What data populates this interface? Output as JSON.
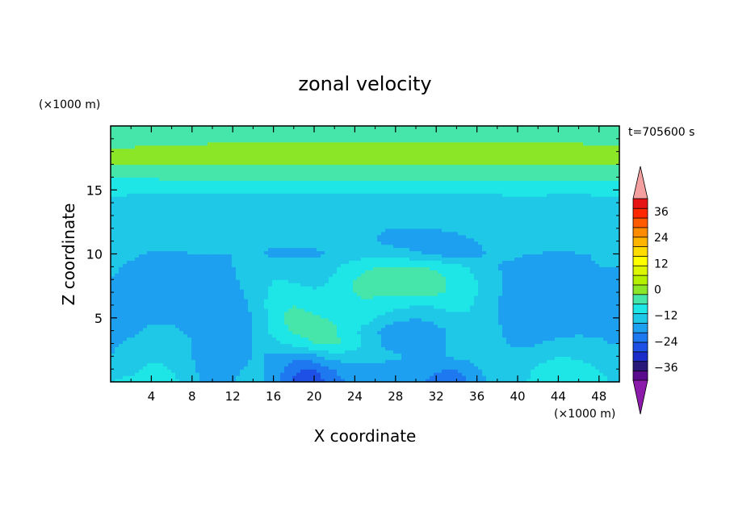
{
  "chart_data": {
    "type": "heatmap",
    "title": "zonal velocity",
    "xlabel": "X coordinate",
    "ylabel": "Z coordinate",
    "x_units": "(×1000 m)",
    "y_units": "(×1000 m)",
    "time_label": "t=705600 s",
    "xlim": [
      0,
      50
    ],
    "ylim": [
      0,
      20
    ],
    "x_ticks": [
      4,
      8,
      12,
      16,
      20,
      24,
      28,
      32,
      36,
      40,
      44,
      48
    ],
    "y_ticks": [
      5,
      10,
      15
    ],
    "colorbar": {
      "min": -42,
      "max": 42,
      "step": 6,
      "labels": [
        36,
        24,
        12,
        0,
        -12,
        -24,
        -36
      ],
      "extend": "both",
      "colors": [
        "#5a0a8c",
        "#28187a",
        "#1c2cc8",
        "#1e50e6",
        "#1e78f0",
        "#1ea0f0",
        "#1ec8e6",
        "#1ee6e6",
        "#46e6aa",
        "#8ce628",
        "#b4f000",
        "#dcf500",
        "#ffff00",
        "#ffdc00",
        "#ffb400",
        "#ff8c00",
        "#ff5a00",
        "#ff2800",
        "#e61414"
      ],
      "over_color": "#f4a0a0",
      "under_color": "#8c1aaa"
    },
    "x": [
      0,
      1,
      2,
      3,
      4,
      5,
      6,
      7,
      8,
      9,
      10,
      11,
      12,
      13,
      14,
      15,
      16,
      17,
      18,
      19,
      20,
      21,
      22,
      23,
      24,
      25,
      26,
      27,
      28,
      29,
      30,
      31,
      32,
      33,
      34,
      35,
      36,
      37,
      38,
      39,
      40,
      41,
      42,
      43,
      44,
      45,
      46,
      47,
      48,
      49,
      50
    ],
    "z": [
      0,
      1,
      2,
      3,
      4,
      5,
      6,
      7,
      8,
      9,
      10,
      11,
      12,
      13,
      14,
      15,
      16,
      17,
      18,
      19,
      20
    ],
    "values": [
      [
        0,
        1,
        1,
        2,
        2,
        2,
        1,
        0,
        -3,
        -6,
        -8,
        -8,
        -6,
        -4,
        -3,
        -5,
        -9,
        -14,
        -20,
        -24,
        -22,
        -18,
        -14,
        -12,
        -12,
        -11,
        -10,
        -11,
        -12,
        -12,
        -12,
        -12,
        -14,
        -16,
        -16,
        -12,
        -8,
        -6,
        -5,
        -4,
        -2,
        0,
        2,
        3,
        4,
        4,
        3,
        2,
        1,
        0,
        0
      ],
      [
        -4,
        -2,
        -1,
        0,
        1,
        1,
        0,
        -2,
        -5,
        -8,
        -9,
        -9,
        -8,
        -6,
        -5,
        -6,
        -9,
        -12,
        -16,
        -19,
        -18,
        -15,
        -12,
        -10,
        -10,
        -9,
        -8,
        -9,
        -10,
        -10,
        -10,
        -10,
        -11,
        -12,
        -12,
        -10,
        -7,
        -5,
        -5,
        -4,
        -3,
        -1,
        1,
        2,
        3,
        3,
        2,
        1,
        0,
        -1,
        -1
      ],
      [
        -6,
        -4,
        -3,
        -2,
        -1,
        -1,
        -2,
        -3,
        -6,
        -8,
        -9,
        -9,
        -8,
        -7,
        -6,
        -6,
        -8,
        -9,
        -10,
        -10,
        -8,
        -5,
        -3,
        -3,
        -3,
        -3,
        -3,
        -4,
        -5,
        -6,
        -6,
        -6,
        -6,
        -6,
        -5,
        -4,
        -3,
        -3,
        -4,
        -4,
        -4,
        -3,
        -2,
        -1,
        0,
        0,
        -1,
        -1,
        -2,
        -3,
        -3
      ],
      [
        -7,
        -6,
        -5,
        -4,
        -3,
        -3,
        -3,
        -4,
        -6,
        -7,
        -8,
        -8,
        -8,
        -7,
        -6,
        -3,
        -2,
        0,
        2,
        4,
        6,
        7,
        7,
        5,
        2,
        -1,
        -4,
        -7,
        -9,
        -10,
        -10,
        -9,
        -8,
        -6,
        -4,
        -3,
        -2,
        -3,
        -5,
        -6,
        -7,
        -7,
        -6,
        -5,
        -4,
        -4,
        -4,
        -5,
        -5,
        -6,
        -6
      ],
      [
        -8,
        -7,
        -7,
        -6,
        -5,
        -5,
        -5,
        -6,
        -7,
        -8,
        -9,
        -9,
        -9,
        -8,
        -6,
        -2,
        2,
        5,
        7,
        8,
        8,
        8,
        7,
        4,
        1,
        -2,
        -5,
        -8,
        -10,
        -11,
        -11,
        -10,
        -8,
        -6,
        -4,
        -2,
        -2,
        -3,
        -5,
        -7,
        -9,
        -10,
        -10,
        -9,
        -8,
        -8,
        -7,
        -7,
        -7,
        -7,
        -7
      ],
      [
        -8,
        -7,
        -7,
        -7,
        -7,
        -7,
        -7,
        -8,
        -9,
        -10,
        -10,
        -10,
        -9,
        -8,
        -6,
        -2,
        3,
        6,
        8,
        8,
        7,
        6,
        5,
        4,
        3,
        2,
        0,
        -2,
        -4,
        -5,
        -6,
        -5,
        -4,
        -3,
        -2,
        -1,
        -2,
        -4,
        -6,
        -8,
        -10,
        -11,
        -12,
        -11,
        -10,
        -10,
        -9,
        -8,
        -8,
        -7,
        -7
      ],
      [
        -8,
        -8,
        -8,
        -8,
        -9,
        -9,
        -10,
        -10,
        -11,
        -11,
        -11,
        -10,
        -9,
        -7,
        -5,
        -1,
        3,
        5,
        6,
        5,
        4,
        3,
        3,
        4,
        5,
        5,
        4,
        3,
        2,
        1,
        0,
        0,
        1,
        2,
        2,
        1,
        -1,
        -3,
        -6,
        -8,
        -10,
        -12,
        -12,
        -12,
        -11,
        -10,
        -10,
        -9,
        -8,
        -8,
        -8
      ],
      [
        -7,
        -8,
        -8,
        -9,
        -10,
        -11,
        -11,
        -12,
        -12,
        -12,
        -11,
        -10,
        -8,
        -6,
        -4,
        -1,
        2,
        3,
        3,
        2,
        1,
        1,
        2,
        4,
        6,
        7,
        7,
        7,
        7,
        8,
        8,
        8,
        7,
        6,
        4,
        2,
        0,
        -2,
        -5,
        -8,
        -10,
        -11,
        -12,
        -12,
        -11,
        -11,
        -10,
        -9,
        -8,
        -8,
        -8
      ],
      [
        -6,
        -7,
        -8,
        -9,
        -10,
        -11,
        -12,
        -12,
        -12,
        -11,
        -10,
        -9,
        -7,
        -5,
        -3,
        -2,
        0,
        0,
        -1,
        -2,
        -2,
        -1,
        1,
        3,
        6,
        8,
        9,
        10,
        10,
        10,
        10,
        9,
        8,
        6,
        4,
        2,
        0,
        -2,
        -4,
        -7,
        -9,
        -10,
        -10,
        -10,
        -10,
        -10,
        -9,
        -8,
        -7,
        -7,
        -7
      ],
      [
        -5,
        -6,
        -7,
        -8,
        -9,
        -10,
        -10,
        -10,
        -10,
        -9,
        -8,
        -7,
        -6,
        -5,
        -4,
        -4,
        -4,
        -4,
        -4,
        -4,
        -4,
        -3,
        -1,
        1,
        3,
        5,
        6,
        7,
        7,
        7,
        7,
        6,
        5,
        4,
        2,
        0,
        -2,
        -4,
        -6,
        -7,
        -8,
        -9,
        -9,
        -9,
        -9,
        -8,
        -8,
        -7,
        -6,
        -6,
        -6
      ],
      [
        -4,
        -5,
        -5,
        -6,
        -7,
        -7,
        -7,
        -7,
        -6,
        -6,
        -6,
        -6,
        -6,
        -6,
        -6,
        -6,
        -7,
        -7,
        -7,
        -7,
        -7,
        -6,
        -5,
        -4,
        -3,
        -2,
        -2,
        -2,
        -3,
        -4,
        -5,
        -6,
        -7,
        -8,
        -8,
        -8,
        -7,
        -6,
        -5,
        -5,
        -5,
        -6,
        -6,
        -7,
        -7,
        -7,
        -6,
        -6,
        -5,
        -5,
        -5
      ],
      [
        -3,
        -3,
        -3,
        -3,
        -3,
        -3,
        -3,
        -3,
        -3,
        -3,
        -4,
        -4,
        -4,
        -5,
        -5,
        -5,
        -5,
        -5,
        -5,
        -5,
        -5,
        -5,
        -4,
        -4,
        -4,
        -5,
        -6,
        -7,
        -8,
        -9,
        -9,
        -9,
        -9,
        -9,
        -8,
        -7,
        -6,
        -5,
        -4,
        -3,
        -3,
        -3,
        -3,
        -4,
        -4,
        -4,
        -4,
        -3,
        -3,
        -3,
        -3
      ],
      [
        -2,
        -2,
        -2,
        -2,
        -2,
        -2,
        -2,
        -3,
        -3,
        -3,
        -3,
        -3,
        -3,
        -3,
        -3,
        -3,
        -3,
        -3,
        -3,
        -3,
        -3,
        -3,
        -3,
        -4,
        -4,
        -5,
        -5,
        -6,
        -6,
        -6,
        -6,
        -6,
        -6,
        -5,
        -5,
        -4,
        -3,
        -2,
        -2,
        -1,
        -1,
        -1,
        -1,
        -2,
        -2,
        -2,
        -2,
        -2,
        -1,
        -1,
        -1
      ],
      [
        -2,
        -2,
        -3,
        -3,
        -4,
        -4,
        -4,
        -4,
        -4,
        -4,
        -4,
        -4,
        -4,
        -4,
        -4,
        -4,
        -4,
        -5,
        -5,
        -5,
        -5,
        -5,
        -5,
        -5,
        -5,
        -5,
        -4,
        -4,
        -4,
        -4,
        -4,
        -3,
        -3,
        -3,
        -3,
        -2,
        -2,
        -2,
        -2,
        -1,
        -1,
        -1,
        -1,
        -1,
        -1,
        -1,
        -1,
        -1,
        -1,
        -1,
        -1
      ],
      [
        -1,
        -1,
        -2,
        -2,
        -2,
        -2,
        -2,
        -2,
        -2,
        -3,
        -3,
        -3,
        -3,
        -3,
        -2,
        -2,
        -2,
        -2,
        -2,
        -2,
        -2,
        -2,
        -2,
        -2,
        -2,
        -3,
        -3,
        -3,
        -3,
        -3,
        -3,
        -3,
        -3,
        -3,
        -3,
        -2,
        -2,
        -2,
        -2,
        -1,
        -1,
        -1,
        -1,
        -2,
        -2,
        -2,
        -2,
        -2,
        -1,
        -1,
        -1
      ],
      [
        1,
        1,
        1,
        1,
        1,
        1,
        1,
        1,
        1,
        1,
        1,
        1,
        1,
        1,
        1,
        1,
        1,
        1,
        1,
        1,
        1,
        1,
        1,
        1,
        1,
        1,
        1,
        1,
        1,
        1,
        1,
        1,
        1,
        1,
        1,
        1,
        1,
        1,
        1,
        1,
        1,
        1,
        1,
        1,
        1,
        1,
        1,
        1,
        1,
        1,
        1
      ],
      [
        6,
        6,
        6,
        6,
        6,
        7,
        7,
        7,
        7,
        7,
        7,
        7,
        7,
        7,
        7,
        7,
        7,
        7,
        7,
        7,
        7,
        7,
        7,
        7,
        7,
        7,
        7,
        7,
        7,
        7,
        7,
        7,
        7,
        7,
        7,
        7,
        7,
        7,
        7,
        7,
        7,
        7,
        7,
        7,
        7,
        7,
        7,
        7,
        7,
        7,
        7
      ],
      [
        12,
        12,
        12,
        12,
        12,
        12,
        12,
        12,
        12,
        12,
        12,
        12,
        12,
        12,
        12,
        12,
        12,
        12,
        12,
        12,
        12,
        12,
        12,
        12,
        12,
        12,
        12,
        12,
        12,
        12,
        12,
        12,
        12,
        12,
        12,
        12,
        12,
        12,
        12,
        12,
        12,
        12,
        12,
        12,
        12,
        12,
        12,
        12,
        12,
        12,
        12
      ],
      [
        13,
        13,
        13,
        14,
        14,
        14,
        14,
        14,
        14,
        14,
        15,
        15,
        15,
        15,
        15,
        15,
        15,
        15,
        15,
        15,
        15,
        15,
        15,
        15,
        15,
        16,
        16,
        16,
        16,
        16,
        16,
        16,
        16,
        16,
        16,
        16,
        16,
        16,
        16,
        16,
        15,
        15,
        15,
        15,
        15,
        15,
        15,
        14,
        14,
        14,
        14
      ],
      [
        9,
        9,
        9,
        10,
        10,
        10,
        10,
        10,
        10,
        10,
        11,
        11,
        11,
        11,
        11,
        11,
        11,
        11,
        11,
        11,
        11,
        11,
        11,
        11,
        11,
        11,
        11,
        11,
        11,
        11,
        11,
        11,
        11,
        11,
        11,
        11,
        11,
        11,
        11,
        11,
        11,
        11,
        11,
        11,
        11,
        11,
        11,
        10,
        10,
        10,
        10
      ],
      [
        6,
        6,
        6,
        6,
        6,
        6,
        6,
        6,
        6,
        6,
        6,
        6,
        6,
        6,
        6,
        6,
        6,
        6,
        6,
        6,
        6,
        6,
        6,
        6,
        6,
        6,
        6,
        6,
        6,
        6,
        6,
        6,
        6,
        6,
        6,
        6,
        6,
        6,
        6,
        6,
        6,
        6,
        6,
        6,
        6,
        6,
        6,
        6,
        6,
        6,
        6
      ]
    ]
  }
}
